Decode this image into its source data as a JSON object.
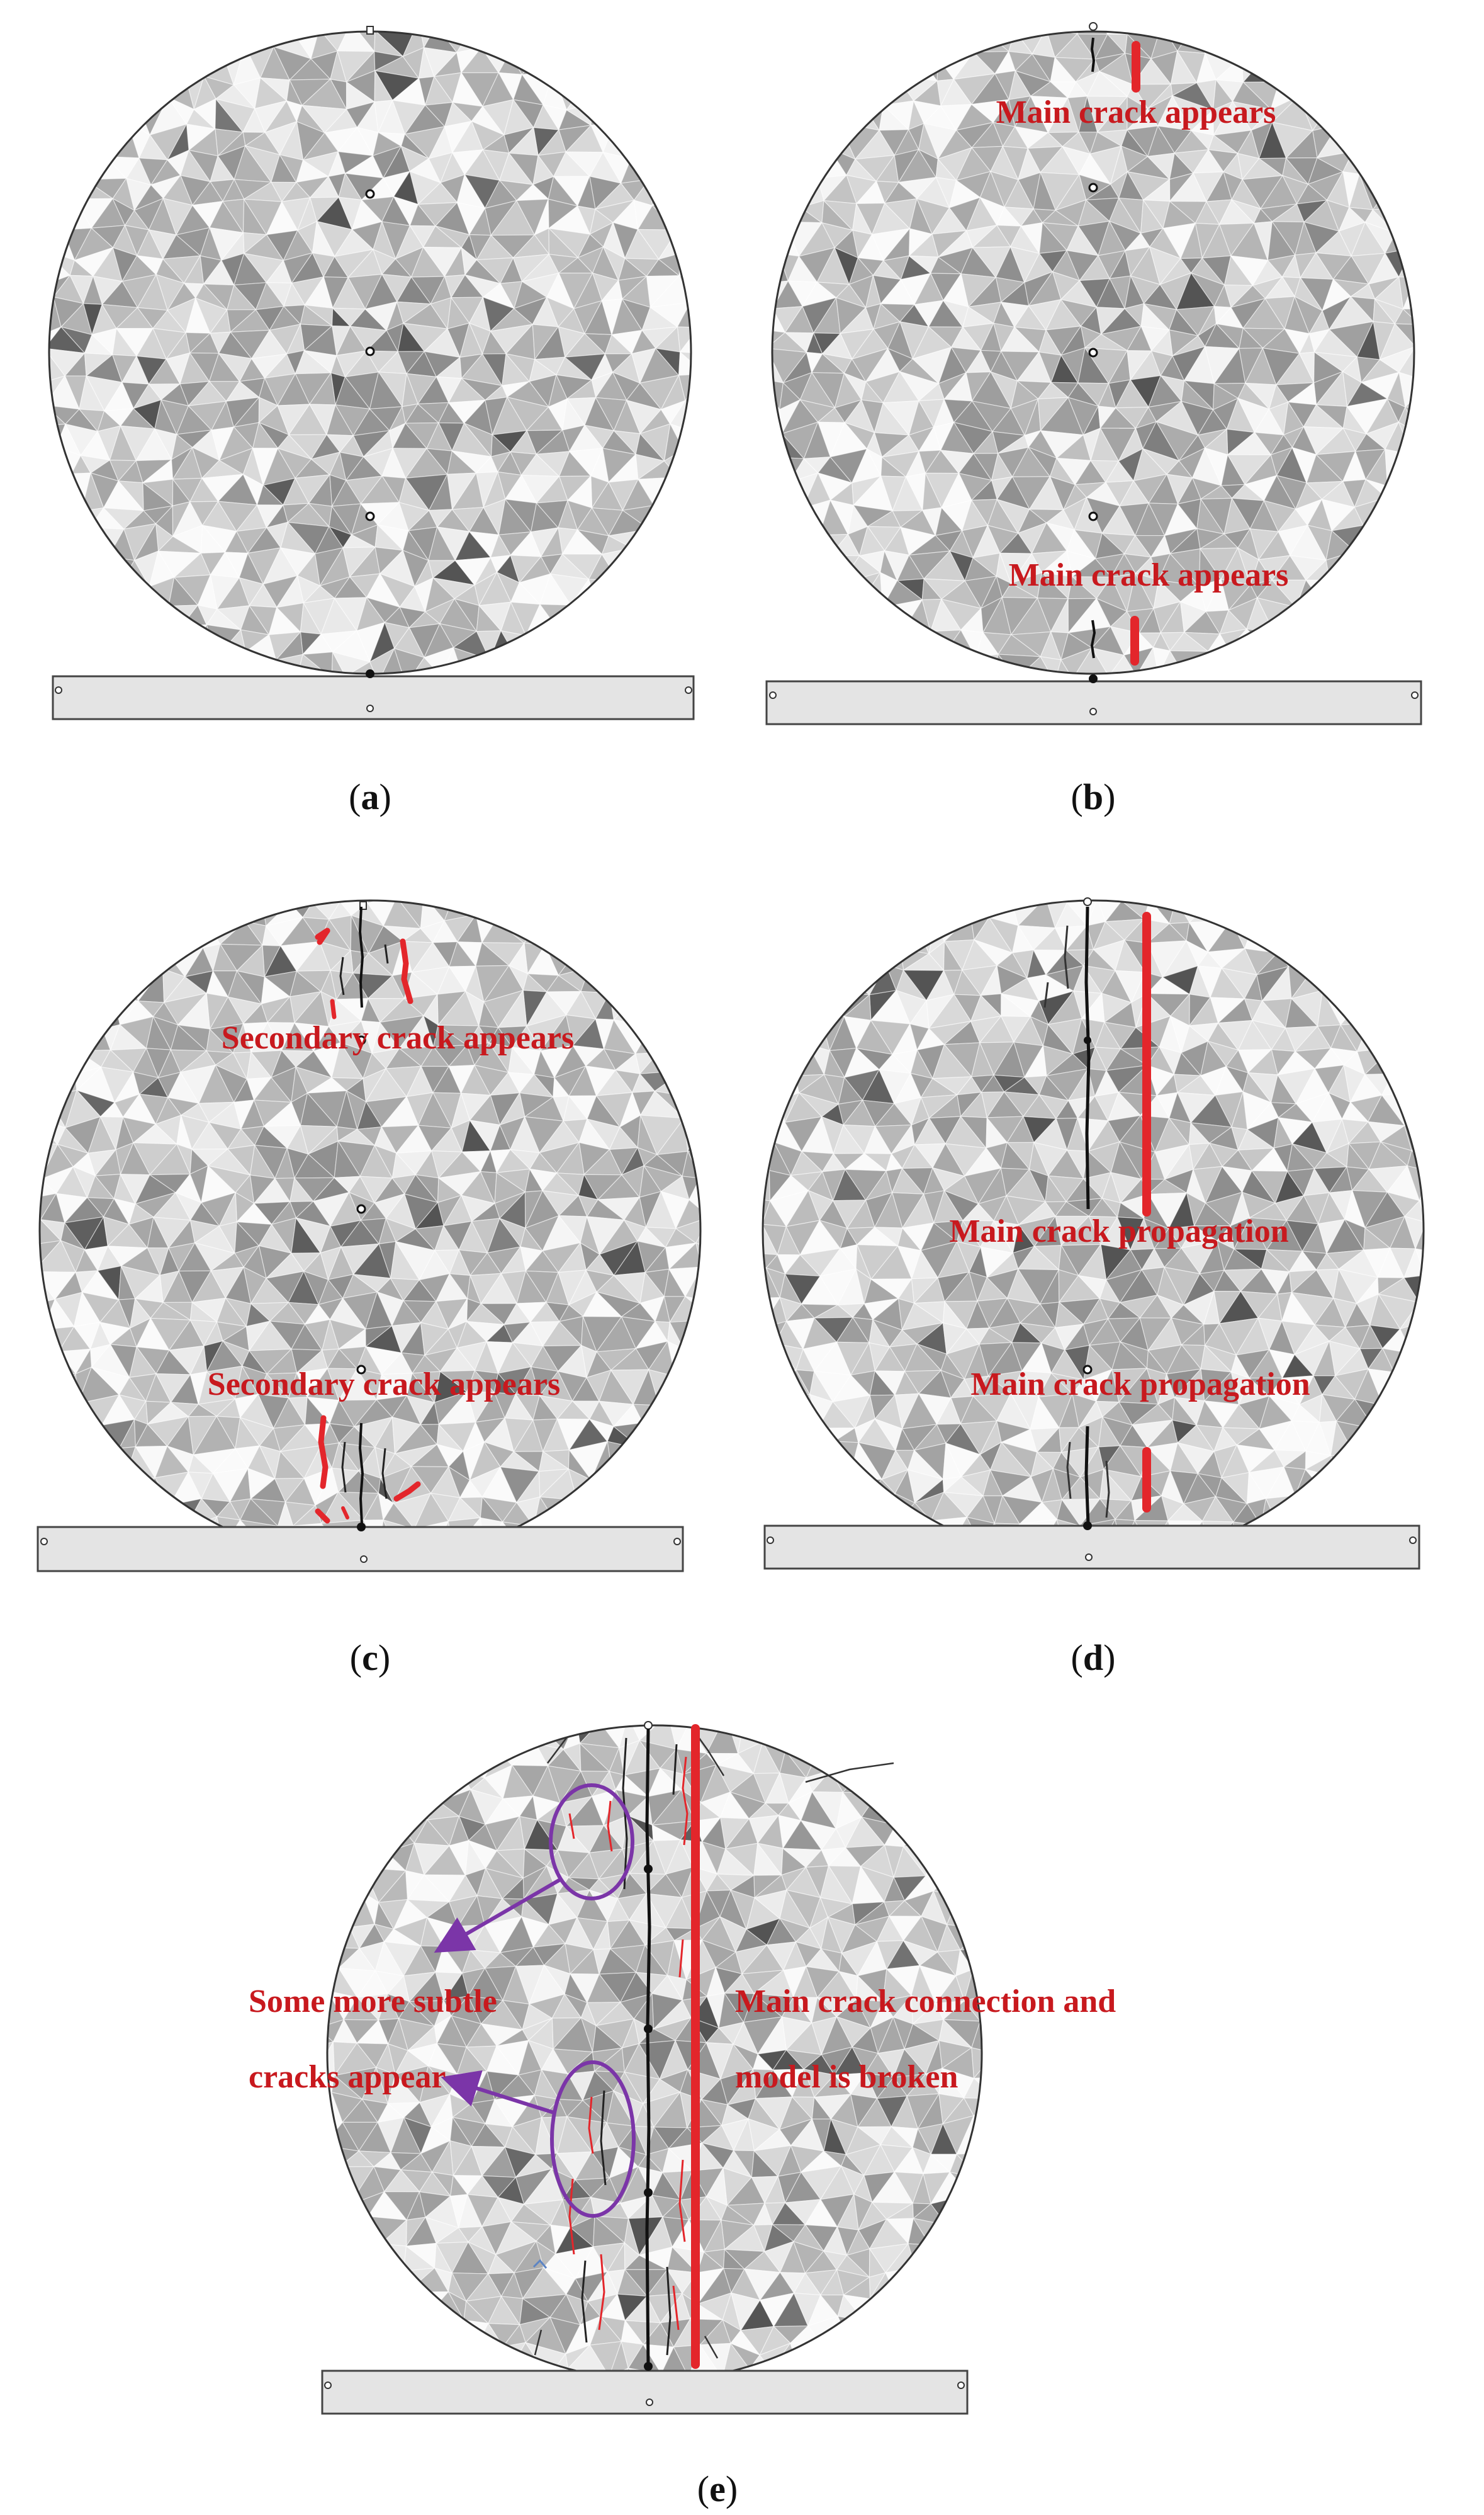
{
  "colors": {
    "crack_red": "#e3262b",
    "annotation_red": "#c8191e",
    "crack_black": "#111111",
    "ellipse_purple": "#7b35a8",
    "platen_fill": "#e4e4e4",
    "mesh_light": "#f2f2f2",
    "mesh_dark": "#5e5e5e",
    "outline": "#333333"
  },
  "panels": [
    {
      "caption": "a",
      "annotations": []
    },
    {
      "caption": "b",
      "annotations": [
        "Main crack appears",
        "Main crack appears"
      ]
    },
    {
      "caption": "c",
      "annotations": [
        "Secondary crack appears",
        "Secondary crack appears"
      ]
    },
    {
      "caption": "d",
      "annotations": [
        "Main crack propagation",
        "Main crack propagation"
      ]
    },
    {
      "caption": "e",
      "annotations": [
        "Some more subtle",
        "cracks appear",
        "Main crack connection and",
        "model is broken"
      ]
    }
  ]
}
